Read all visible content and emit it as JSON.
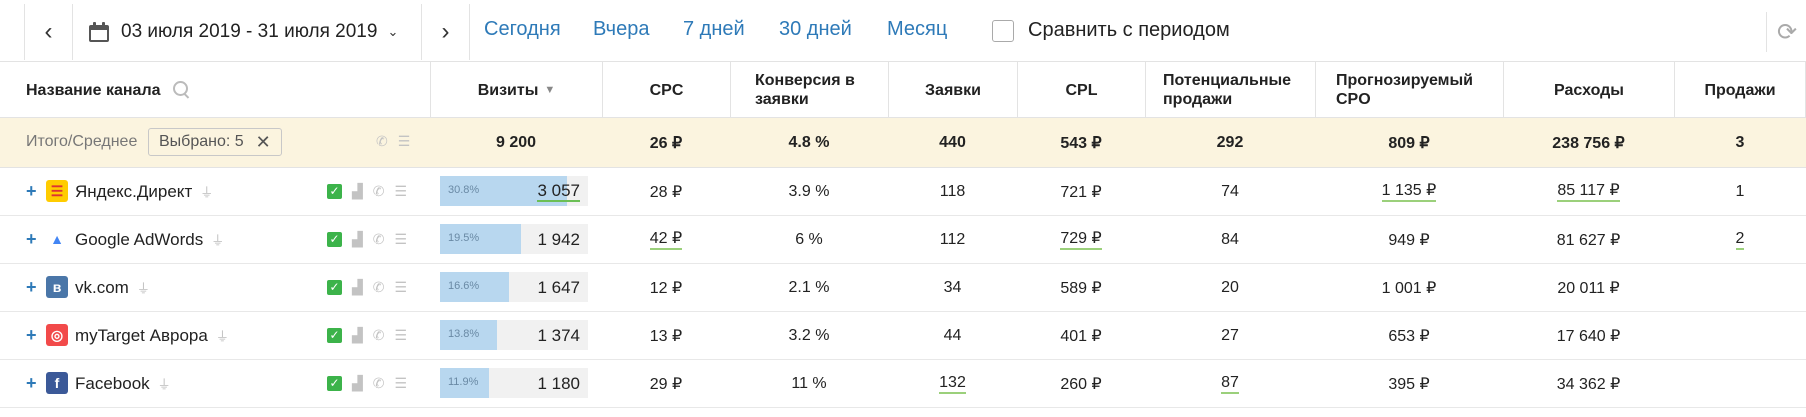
{
  "toolbar": {
    "date_range": "03 июля 2019 - 31 июля 2019",
    "quick_ranges": [
      "Сегодня",
      "Вчера",
      "7 дней",
      "30 дней",
      "Месяц"
    ],
    "compare_label": "Сравнить с периодом"
  },
  "table": {
    "columns": {
      "channel": "Название канала",
      "visits": "Визиты",
      "cpc": "CPC",
      "conversion": "Конверсия в заявки",
      "leads": "Заявки",
      "cpl": "CPL",
      "potential_sales": "Потенциальные продажи",
      "forecast_cpo": "Прогнозируемый CPO",
      "expenses": "Расходы",
      "sales": "Продажи"
    },
    "totals": {
      "label": "Итого/Среднее",
      "selected": "Выбрано: 5",
      "visits": "9 200",
      "cpc": "26 ₽",
      "conversion": "4.8 %",
      "leads": "440",
      "cpl": "543 ₽",
      "potential_sales": "292",
      "forecast_cpo": "809 ₽",
      "expenses": "238 756 ₽",
      "sales": "3"
    },
    "rows": [
      {
        "name": "Яндекс.Директ",
        "icon": "yandex-direct-logo",
        "share_label": "30.8%",
        "share": 0.308,
        "visits": "3 057",
        "cpc": "28 ₽",
        "conversion": "3.9 %",
        "leads": "118",
        "cpl": "721 ₽",
        "potential_sales": "74",
        "forecast_cpo": "1 135 ₽",
        "expenses": "85 117 ₽",
        "sales": "1"
      },
      {
        "name": "Google AdWords",
        "icon": "google-adwords-logo",
        "share_label": "19.5%",
        "share": 0.195,
        "visits": "1 942",
        "cpc": "42 ₽",
        "conversion": "6 %",
        "leads": "112",
        "cpl": "729 ₽",
        "potential_sales": "84",
        "forecast_cpo": "949 ₽",
        "expenses": "81 627 ₽",
        "sales": "2"
      },
      {
        "name": "vk.com",
        "icon": "vk-logo",
        "share_label": "16.6%",
        "share": 0.166,
        "visits": "1 647",
        "cpc": "12 ₽",
        "conversion": "2.1 %",
        "leads": "34",
        "cpl": "589 ₽",
        "potential_sales": "20",
        "forecast_cpo": "1 001 ₽",
        "expenses": "20 011 ₽",
        "sales": ""
      },
      {
        "name": "myTarget Аврора",
        "icon": "mytarget-logo",
        "share_label": "13.8%",
        "share": 0.138,
        "visits": "1 374",
        "cpc": "13 ₽",
        "conversion": "3.2 %",
        "leads": "44",
        "cpl": "401 ₽",
        "potential_sales": "27",
        "forecast_cpo": "653 ₽",
        "expenses": "17 640 ₽",
        "sales": ""
      },
      {
        "name": "Facebook",
        "icon": "facebook-logo",
        "share_label": "11.9%",
        "share": 0.119,
        "visits": "1 180",
        "cpc": "29 ₽",
        "conversion": "11 %",
        "leads": "132",
        "cpl": "260 ₽",
        "potential_sales": "87",
        "forecast_cpo": "395 ₽",
        "expenses": "34 362 ₽",
        "sales": ""
      }
    ]
  },
  "colors": {
    "link": "#2e7ab8",
    "totals_bg": "#fbf4df",
    "bar": "#b8d7ef",
    "checkbox": "#3cb34a",
    "underline": "#9bd07b"
  }
}
